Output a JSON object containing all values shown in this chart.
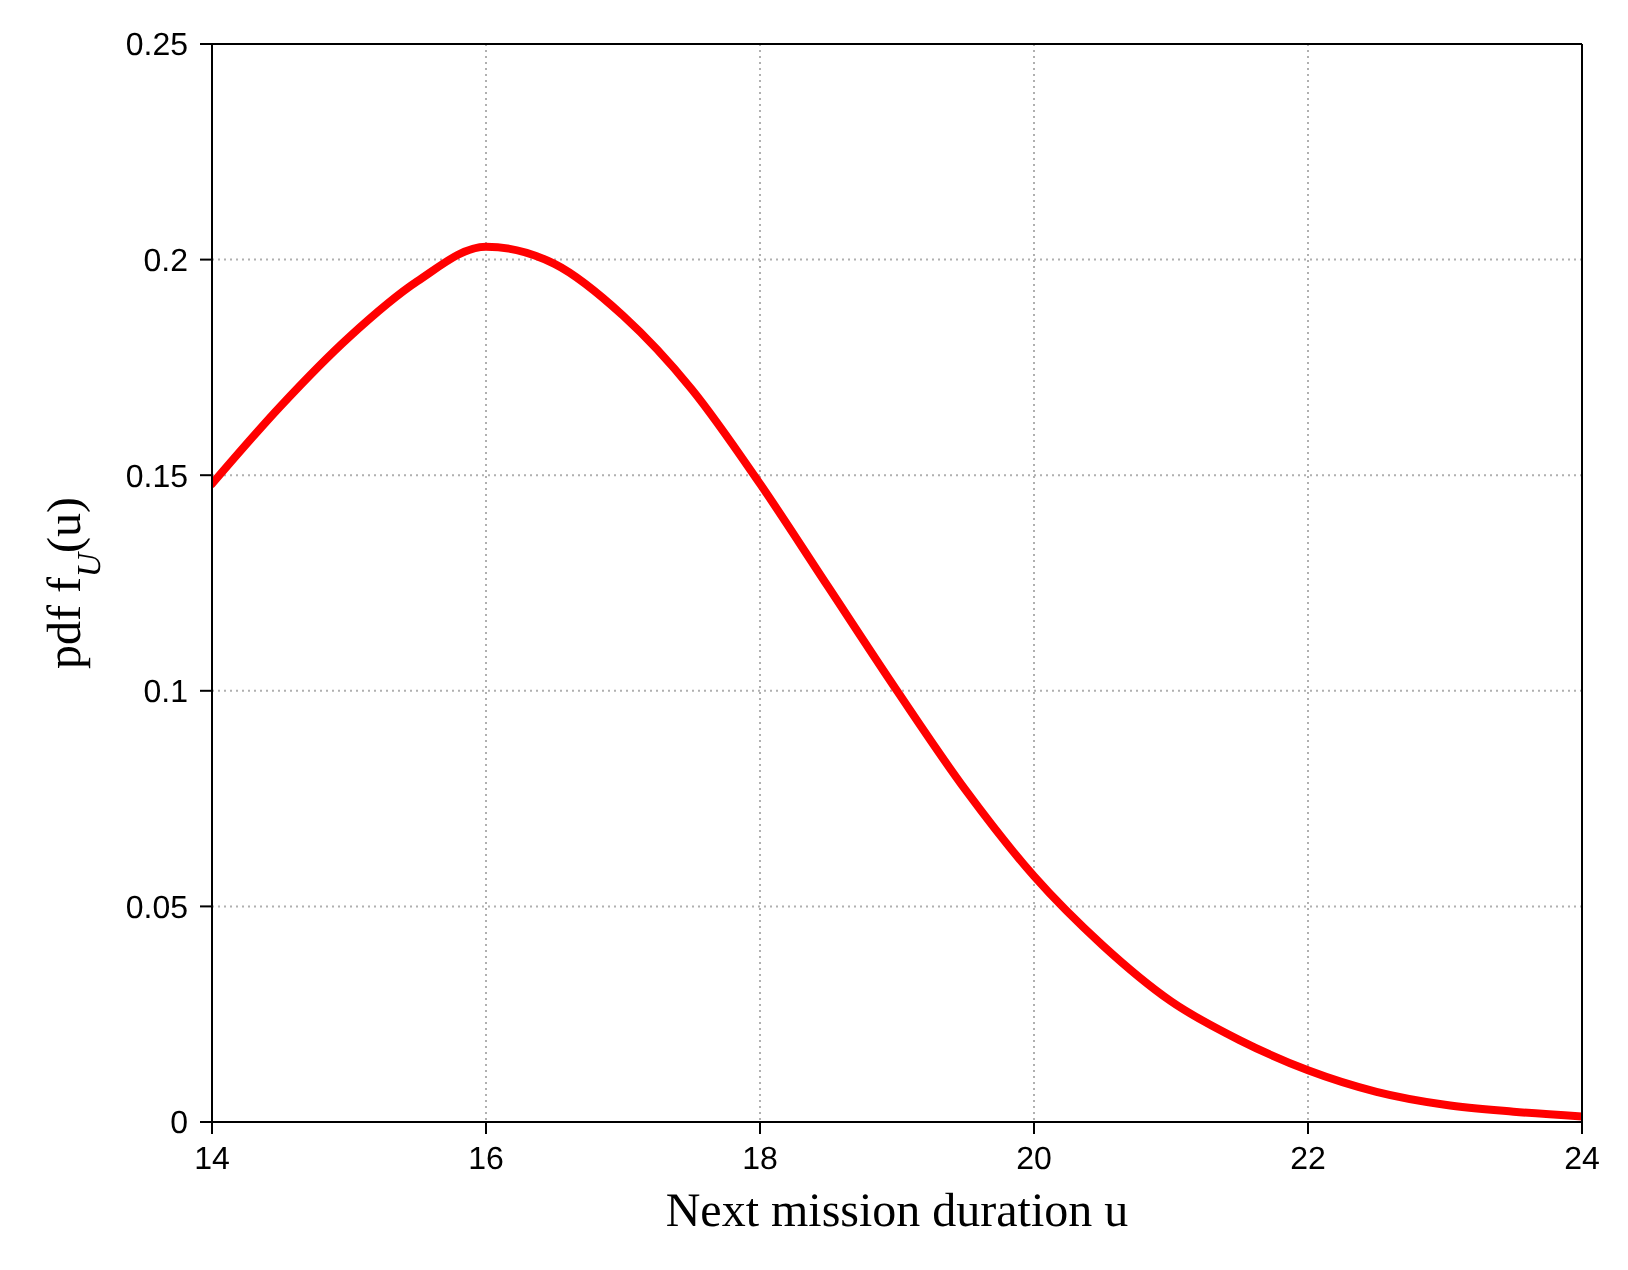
{
  "chart_data": {
    "type": "line",
    "xlabel": "Next mission duration u",
    "ylabel": "pdf f$_{U}$(u)",
    "x": [
      14,
      14.5,
      15,
      15.5,
      16,
      16.5,
      17,
      17.5,
      18,
      18.5,
      19,
      19.5,
      20,
      20.5,
      21,
      21.5,
      22,
      22.5,
      23,
      23.5,
      24
    ],
    "series": [
      {
        "color": "#ff0000",
        "values": [
          0.148,
          0.166,
          0.182,
          0.195,
          0.203,
          0.199,
          0.187,
          0.17,
          0.148,
          0.124,
          0.1,
          0.077,
          0.057,
          0.041,
          0.028,
          0.019,
          0.012,
          0.007,
          0.004,
          0.0024,
          0.0013
        ]
      }
    ],
    "xlim": [
      14,
      24
    ],
    "xticks": [
      14,
      16,
      18,
      20,
      22,
      24
    ],
    "ylim": [
      0,
      0.25
    ],
    "yticks": [
      0,
      0.05,
      0.1,
      0.15,
      0.2,
      0.25
    ],
    "grid": true,
    "marker": "none",
    "line_style": "solid",
    "legend": false
  }
}
